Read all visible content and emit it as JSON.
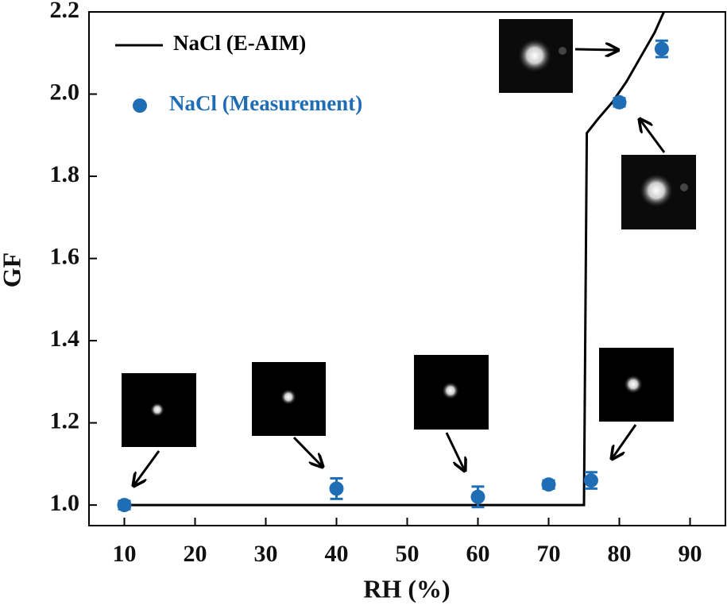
{
  "chart_data": {
    "type": "line",
    "xlabel": "RH (%)",
    "ylabel": "GF",
    "xlim": [
      5,
      95
    ],
    "ylim": [
      0.95,
      2.2
    ],
    "xticks": [
      10,
      20,
      30,
      40,
      50,
      60,
      70,
      80,
      90
    ],
    "yticks": [
      {
        "value": 1.0,
        "label": "1.0"
      },
      {
        "value": 1.2,
        "label": "1.2"
      },
      {
        "value": 1.4,
        "label": "1.4"
      },
      {
        "value": 1.6,
        "label": "1.6"
      },
      {
        "value": 1.8,
        "label": "1.8"
      },
      {
        "value": 2.0,
        "label": "2.0"
      },
      {
        "value": 2.2,
        "label": "2.2"
      }
    ],
    "series": [
      {
        "name": "NaCl (E-AIM)",
        "kind": "line",
        "color": "#000000",
        "x": [
          10,
          75,
          75.4,
          77,
          79,
          81,
          83,
          85,
          86.3
        ],
        "values": [
          1.0,
          1.0,
          1.905,
          1.94,
          1.98,
          2.03,
          2.09,
          2.15,
          2.2
        ]
      },
      {
        "name": "NaCl (Measurement)",
        "kind": "scatter",
        "color": "#1f6db5",
        "x": [
          10,
          40,
          60,
          70,
          76,
          80,
          86
        ],
        "values": [
          1.0,
          1.04,
          1.02,
          1.05,
          1.06,
          1.98,
          2.11
        ],
        "errors": [
          0.01,
          0.025,
          0.025,
          0.01,
          0.02,
          0.01,
          0.02
        ]
      }
    ]
  }
}
